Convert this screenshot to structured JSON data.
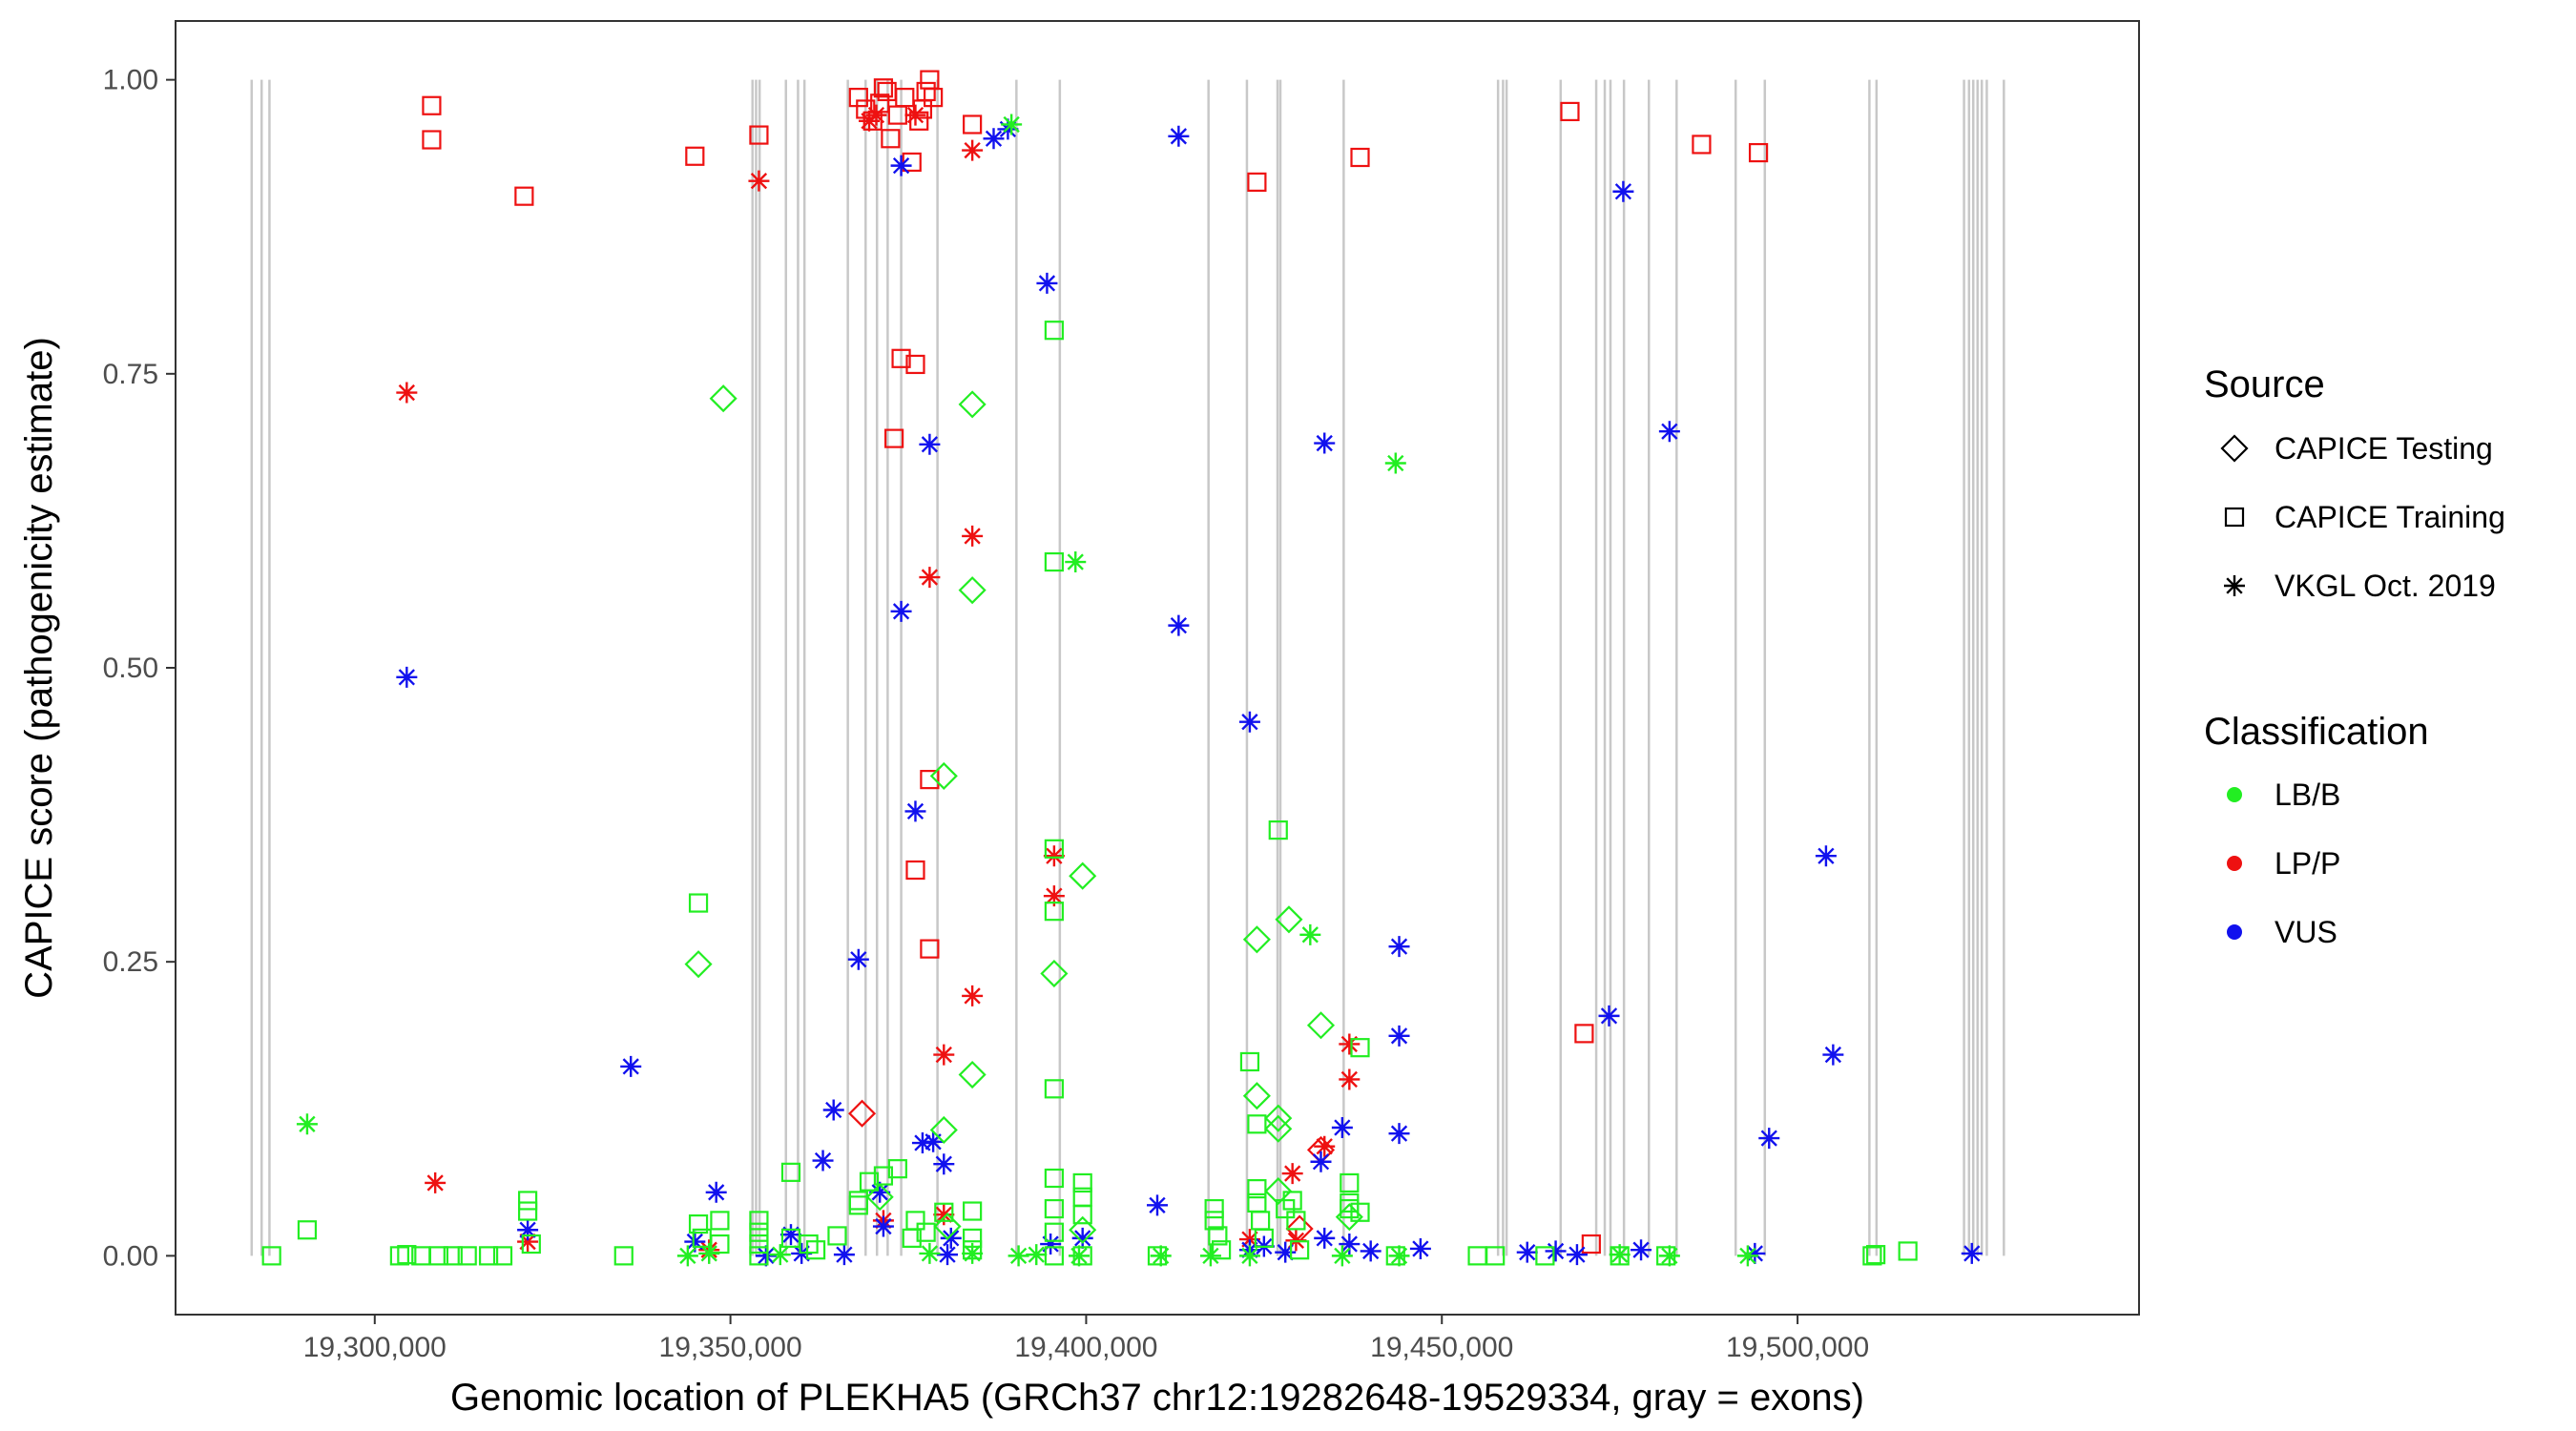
{
  "chart_data": {
    "type": "scatter",
    "title": "",
    "xlabel": "Genomic location of PLEKHA5 (GRCh37 chr12:19282648-19529334, gray = exons)",
    "ylabel": "CAPICE score (pathogenicity estimate)",
    "xlim": [
      19272000,
      19548000
    ],
    "ylim": [
      -0.05,
      1.05
    ],
    "x_ticks": [
      19300000,
      19350000,
      19400000,
      19450000,
      19500000
    ],
    "x_tick_labels": [
      "19,300,000",
      "19,350,000",
      "19,400,000",
      "19,450,000",
      "19,500,000"
    ],
    "y_ticks": [
      0,
      0.25,
      0.5,
      0.75,
      1.0
    ],
    "y_tick_labels": [
      "0.00",
      "0.25",
      "0.50",
      "0.75",
      "1.00"
    ],
    "grid": false,
    "exon_color": "#c8c8c8",
    "exons": [
      19282700,
      19284100,
      19285200,
      19353100,
      19353600,
      19354100,
      19357800,
      19359500,
      19360400,
      19366500,
      19369000,
      19370600,
      19372100,
      19374000,
      19379100,
      19390200,
      19396300,
      19417200,
      19422600,
      19426900,
      19427300,
      19436200,
      19457900,
      19458600,
      19459100,
      19466700,
      19471700,
      19472900,
      19473700,
      19475600,
      19479100,
      19483000,
      19491300,
      19495400,
      19510100,
      19511100,
      19523400,
      19524100,
      19524700,
      19525300,
      19525900,
      19526600,
      19529000
    ],
    "legend": {
      "source_title": "Source",
      "source_entries": [
        {
          "label": "CAPICE Testing",
          "shape": "diamond"
        },
        {
          "label": "CAPICE Training",
          "shape": "square"
        },
        {
          "label": "VKGL Oct. 2019",
          "shape": "asterisk"
        }
      ],
      "class_title": "Classification",
      "class_entries": [
        {
          "label": "LB/B",
          "color": "#22ee22"
        },
        {
          "label": "LP/P",
          "color": "#ee1111"
        },
        {
          "label": "VUS",
          "color": "#1111ee"
        }
      ]
    },
    "series": [
      {
        "source": "CAPICE Training",
        "classification": "LP/P",
        "points": [
          [
            19308000,
            0.978
          ],
          [
            19308000,
            0.949
          ],
          [
            19321000,
            0.901
          ],
          [
            19345000,
            0.935
          ],
          [
            19354000,
            0.953
          ],
          [
            19368000,
            0.985
          ],
          [
            19369000,
            0.975
          ],
          [
            19370000,
            0.965
          ],
          [
            19371000,
            0.98
          ],
          [
            19371500,
            0.993
          ],
          [
            19372000,
            0.99
          ],
          [
            19372500,
            0.95
          ],
          [
            19373500,
            0.97
          ],
          [
            19374500,
            0.985
          ],
          [
            19375500,
            0.93
          ],
          [
            19376500,
            0.965
          ],
          [
            19377000,
            0.975
          ],
          [
            19377500,
            0.99
          ],
          [
            19378000,
            1.0
          ],
          [
            19378500,
            0.985
          ],
          [
            19384000,
            0.962
          ],
          [
            19424000,
            0.913
          ],
          [
            19438500,
            0.934
          ],
          [
            19468000,
            0.973
          ],
          [
            19486500,
            0.945
          ],
          [
            19494500,
            0.938
          ],
          [
            19373000,
            0.695
          ],
          [
            19374000,
            0.763
          ],
          [
            19376000,
            0.758
          ],
          [
            19378000,
            0.405
          ],
          [
            19376000,
            0.328
          ],
          [
            19378000,
            0.261
          ],
          [
            19470000,
            0.189
          ],
          [
            19471000,
            0.01
          ]
        ]
      },
      {
        "source": "VKGL Oct. 2019",
        "classification": "LP/P",
        "points": [
          [
            19304500,
            0.734
          ],
          [
            19308500,
            0.062
          ],
          [
            19321500,
            0.012
          ],
          [
            19347000,
            0.005
          ],
          [
            19354000,
            0.914
          ],
          [
            19369500,
            0.965
          ],
          [
            19370500,
            0.97
          ],
          [
            19376000,
            0.97
          ],
          [
            19380000,
            0.035
          ],
          [
            19384000,
            0.94
          ],
          [
            19378000,
            0.577
          ],
          [
            19384000,
            0.612
          ],
          [
            19395500,
            0.34
          ],
          [
            19395500,
            0.306
          ],
          [
            19384000,
            0.221
          ],
          [
            19380000,
            0.171
          ],
          [
            19437000,
            0.18
          ],
          [
            19437000,
            0.15
          ],
          [
            19433500,
            0.093
          ],
          [
            19429000,
            0.07
          ],
          [
            19429500,
            0.013
          ],
          [
            19423000,
            0.014
          ],
          [
            19371500,
            0.03
          ]
        ]
      },
      {
        "source": "CAPICE Testing",
        "classification": "LP/P",
        "points": [
          [
            19368500,
            0.121
          ],
          [
            19430000,
            0.023
          ],
          [
            19433000,
            0.09
          ]
        ]
      },
      {
        "source": "VKGL Oct. 2019",
        "classification": "VUS",
        "points": [
          [
            19304500,
            0.492
          ],
          [
            19374000,
            0.927
          ],
          [
            19387000,
            0.95
          ],
          [
            19389000,
            0.958
          ],
          [
            19394500,
            0.827
          ],
          [
            19413000,
            0.952
          ],
          [
            19475500,
            0.905
          ],
          [
            19378000,
            0.69
          ],
          [
            19433500,
            0.691
          ],
          [
            19482000,
            0.701
          ],
          [
            19374000,
            0.548
          ],
          [
            19413000,
            0.536
          ],
          [
            19423000,
            0.454
          ],
          [
            19376000,
            0.378
          ],
          [
            19368000,
            0.252
          ],
          [
            19444000,
            0.263
          ],
          [
            19504000,
            0.34
          ],
          [
            19336000,
            0.161
          ],
          [
            19444000,
            0.187
          ],
          [
            19473500,
            0.204
          ],
          [
            19505000,
            0.171
          ],
          [
            19364500,
            0.124
          ],
          [
            19436000,
            0.109
          ],
          [
            19444000,
            0.104
          ],
          [
            19496000,
            0.1
          ],
          [
            19377000,
            0.096
          ],
          [
            19378500,
            0.097
          ],
          [
            19363000,
            0.081
          ],
          [
            19380000,
            0.078
          ],
          [
            19433000,
            0.08
          ],
          [
            19348000,
            0.054
          ],
          [
            19371000,
            0.054
          ],
          [
            19410000,
            0.043
          ],
          [
            19321500,
            0.022
          ],
          [
            19345000,
            0.012
          ],
          [
            19358500,
            0.018
          ],
          [
            19371500,
            0.025
          ],
          [
            19381000,
            0.015
          ],
          [
            19395000,
            0.01
          ],
          [
            19399500,
            0.015
          ],
          [
            19423000,
            0.005
          ],
          [
            19425000,
            0.008
          ],
          [
            19428000,
            0.003
          ],
          [
            19433500,
            0.015
          ],
          [
            19437000,
            0.01
          ],
          [
            19440000,
            0.004
          ],
          [
            19447000,
            0.006
          ],
          [
            19462000,
            0.003
          ],
          [
            19466000,
            0.004
          ],
          [
            19469000,
            0.001
          ],
          [
            19478000,
            0.005
          ],
          [
            19494000,
            0.002
          ],
          [
            19524500,
            0.002
          ],
          [
            19360000,
            0.002
          ],
          [
            19366000,
            0.001
          ],
          [
            19380500,
            0.001
          ],
          [
            19355000,
            0.0
          ]
        ]
      },
      {
        "source": "CAPICE Testing",
        "classification": "LB/B",
        "points": [
          [
            19349000,
            0.729
          ],
          [
            19384000,
            0.724
          ],
          [
            19384000,
            0.566
          ],
          [
            19380000,
            0.408
          ],
          [
            19399500,
            0.323
          ],
          [
            19395500,
            0.24
          ],
          [
            19345500,
            0.248
          ],
          [
            19428500,
            0.286
          ],
          [
            19424000,
            0.269
          ],
          [
            19433000,
            0.196
          ],
          [
            19384000,
            0.154
          ],
          [
            19424000,
            0.136
          ],
          [
            19427000,
            0.117
          ],
          [
            19427000,
            0.108
          ],
          [
            19380000,
            0.107
          ],
          [
            19399500,
            0.022
          ],
          [
            19371000,
            0.05
          ],
          [
            19380500,
            0.025
          ],
          [
            19427000,
            0.055
          ],
          [
            19437000,
            0.033
          ]
        ]
      },
      {
        "source": "CAPICE Training",
        "classification": "LB/B",
        "points": [
          [
            19285500,
            0.0
          ],
          [
            19290500,
            0.022
          ],
          [
            19303500,
            0.0
          ],
          [
            19304500,
            0.001
          ],
          [
            19306500,
            0.0
          ],
          [
            19309000,
            0.0
          ],
          [
            19311000,
            0.0
          ],
          [
            19313000,
            0.0
          ],
          [
            19316000,
            0.0
          ],
          [
            19318000,
            0.0
          ],
          [
            19321500,
            0.047
          ],
          [
            19321500,
            0.038
          ],
          [
            19322000,
            0.01
          ],
          [
            19335000,
            0.0
          ],
          [
            19345500,
            0.3
          ],
          [
            19345500,
            0.027
          ],
          [
            19346000,
            0.015
          ],
          [
            19348500,
            0.03
          ],
          [
            19348500,
            0.01
          ],
          [
            19354000,
            0.03
          ],
          [
            19354000,
            0.02
          ],
          [
            19354000,
            0.01
          ],
          [
            19354000,
            0.0
          ],
          [
            19358500,
            0.071
          ],
          [
            19358500,
            0.015
          ],
          [
            19361000,
            0.01
          ],
          [
            19362000,
            0.005
          ],
          [
            19365000,
            0.017
          ],
          [
            19368000,
            0.047
          ],
          [
            19368000,
            0.043
          ],
          [
            19369500,
            0.063
          ],
          [
            19371500,
            0.068
          ],
          [
            19373500,
            0.074
          ],
          [
            19375500,
            0.015
          ],
          [
            19376000,
            0.03
          ],
          [
            19377500,
            0.02
          ],
          [
            19380000,
            0.037
          ],
          [
            19384000,
            0.038
          ],
          [
            19384000,
            0.015
          ],
          [
            19384000,
            0.005
          ],
          [
            19395500,
            0.787
          ],
          [
            19395500,
            0.59
          ],
          [
            19395500,
            0.346
          ],
          [
            19395500,
            0.293
          ],
          [
            19395500,
            0.142
          ],
          [
            19395500,
            0.066
          ],
          [
            19395500,
            0.04
          ],
          [
            19395500,
            0.02
          ],
          [
            19395500,
            0.0
          ],
          [
            19399500,
            0.062
          ],
          [
            19399500,
            0.05
          ],
          [
            19399500,
            0.035
          ],
          [
            19399500,
            0.0
          ],
          [
            19410000,
            0.0
          ],
          [
            19418000,
            0.04
          ],
          [
            19418000,
            0.03
          ],
          [
            19418500,
            0.017
          ],
          [
            19419000,
            0.005
          ],
          [
            19423000,
            0.165
          ],
          [
            19424000,
            0.112
          ],
          [
            19424000,
            0.057
          ],
          [
            19424000,
            0.045
          ],
          [
            19424500,
            0.03
          ],
          [
            19425000,
            0.015
          ],
          [
            19427000,
            0.362
          ],
          [
            19428000,
            0.04
          ],
          [
            19429000,
            0.047
          ],
          [
            19429500,
            0.03
          ],
          [
            19430000,
            0.005
          ],
          [
            19437000,
            0.062
          ],
          [
            19437000,
            0.045
          ],
          [
            19437000,
            0.04
          ],
          [
            19438500,
            0.177
          ],
          [
            19438500,
            0.037
          ],
          [
            19443500,
            0.0
          ],
          [
            19455000,
            0.0
          ],
          [
            19457500,
            0.0
          ],
          [
            19464500,
            0.0
          ],
          [
            19475000,
            0.0
          ],
          [
            19481500,
            0.0
          ],
          [
            19510500,
            0.0
          ],
          [
            19511000,
            0.001
          ],
          [
            19515500,
            0.004
          ]
        ]
      },
      {
        "source": "VKGL Oct. 2019",
        "classification": "LB/B",
        "points": [
          [
            19290500,
            0.112
          ],
          [
            19389500,
            0.962
          ],
          [
            19398500,
            0.59
          ],
          [
            19443500,
            0.674
          ],
          [
            19431500,
            0.273
          ],
          [
            19344000,
            0.0
          ],
          [
            19347000,
            0.002
          ],
          [
            19357000,
            0.001
          ],
          [
            19378000,
            0.002
          ],
          [
            19384000,
            0.002
          ],
          [
            19390500,
            0.0
          ],
          [
            19393000,
            0.001
          ],
          [
            19399000,
            0.0
          ],
          [
            19410500,
            0.0
          ],
          [
            19417500,
            0.0
          ],
          [
            19423000,
            0.0
          ],
          [
            19436000,
            0.0
          ],
          [
            19444000,
            0.0
          ],
          [
            19475000,
            0.001
          ],
          [
            19482000,
            0.0
          ],
          [
            19493000,
            0.0
          ]
        ]
      }
    ]
  }
}
